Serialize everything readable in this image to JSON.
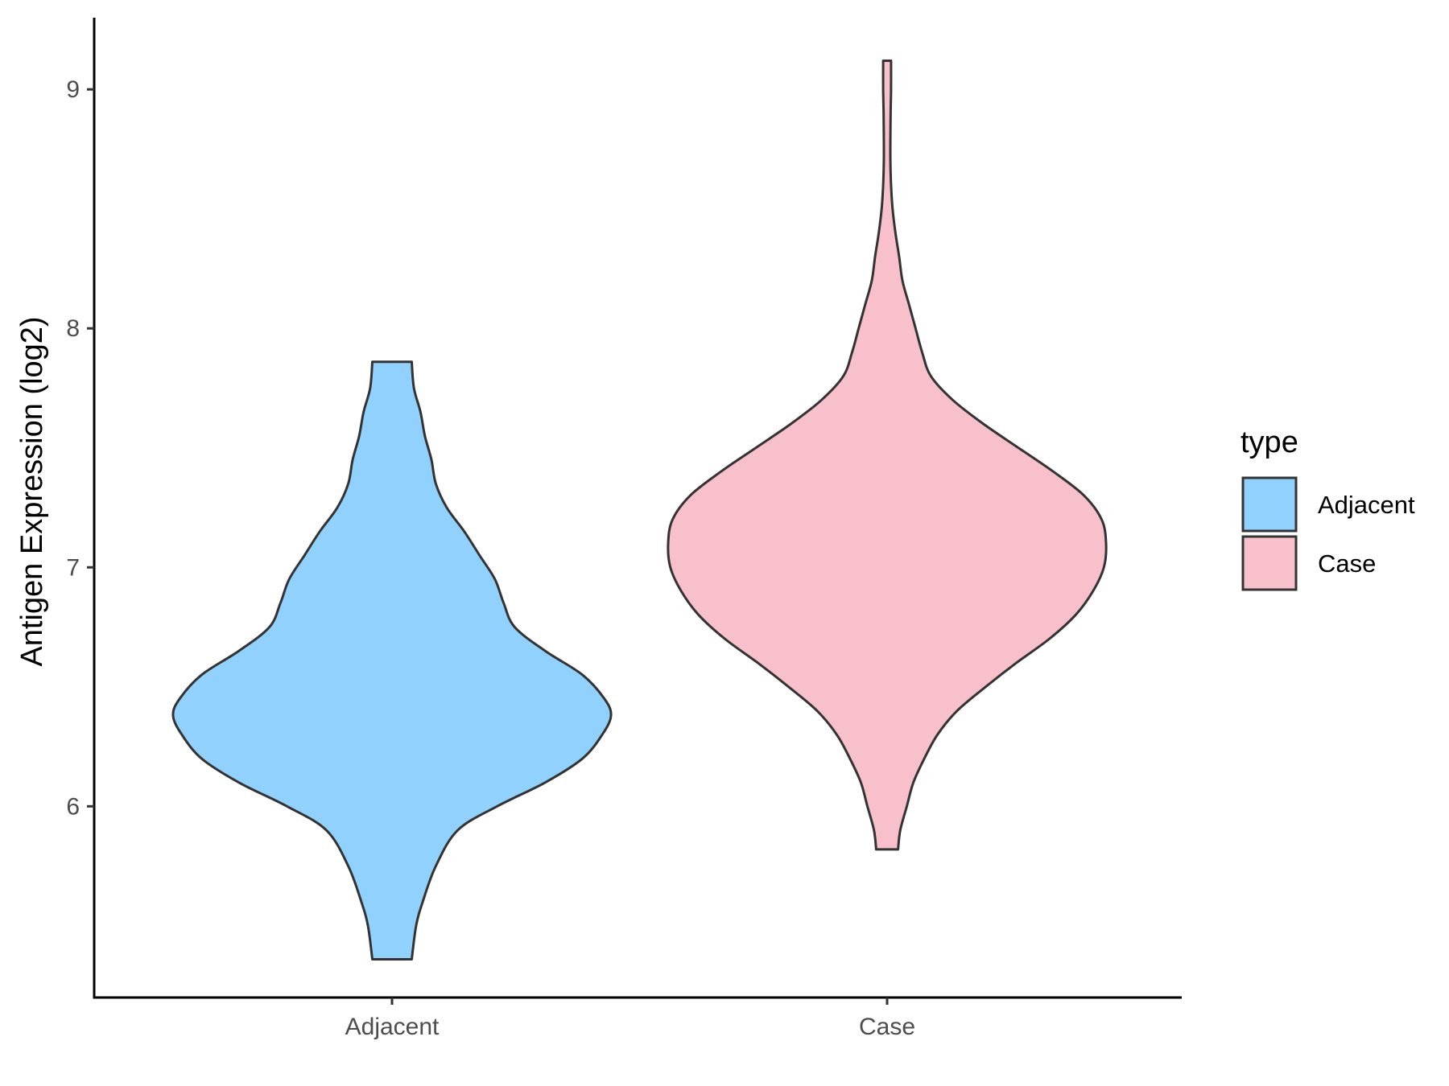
{
  "chart_data": {
    "type": "violin",
    "title": "",
    "xlabel": "",
    "ylabel": "Antigen Expression (log2)",
    "ylim": [
      5.2,
      9.3
    ],
    "yticks": [
      6,
      7,
      8,
      9
    ],
    "categories": [
      "Adjacent",
      "Case"
    ],
    "grid": false,
    "legend": {
      "title": "type",
      "placement": "right",
      "entries": [
        {
          "label": "Adjacent",
          "color": "#91D1FD"
        },
        {
          "label": "Case",
          "color": "#F7C0CB"
        }
      ]
    },
    "series": [
      {
        "name": "Adjacent",
        "color": "#91D1FD",
        "min": 5.36,
        "max": 7.86,
        "density_profile": [
          [
            5.36,
            0.09
          ],
          [
            5.5,
            0.11
          ],
          [
            5.6,
            0.14
          ],
          [
            5.75,
            0.2
          ],
          [
            5.9,
            0.3
          ],
          [
            6.0,
            0.48
          ],
          [
            6.1,
            0.7
          ],
          [
            6.2,
            0.87
          ],
          [
            6.3,
            0.96
          ],
          [
            6.38,
            1.0
          ],
          [
            6.45,
            0.97
          ],
          [
            6.55,
            0.87
          ],
          [
            6.65,
            0.7
          ],
          [
            6.75,
            0.56
          ],
          [
            6.85,
            0.51
          ],
          [
            6.95,
            0.47
          ],
          [
            7.05,
            0.4
          ],
          [
            7.15,
            0.33
          ],
          [
            7.25,
            0.25
          ],
          [
            7.35,
            0.2
          ],
          [
            7.45,
            0.18
          ],
          [
            7.55,
            0.15
          ],
          [
            7.65,
            0.13
          ],
          [
            7.75,
            0.1
          ],
          [
            7.86,
            0.09
          ]
        ]
      },
      {
        "name": "Case",
        "color": "#F7C0CB",
        "min": 5.82,
        "max": 9.12,
        "density_profile": [
          [
            5.82,
            0.05
          ],
          [
            5.9,
            0.06
          ],
          [
            6.0,
            0.09
          ],
          [
            6.1,
            0.12
          ],
          [
            6.2,
            0.17
          ],
          [
            6.3,
            0.23
          ],
          [
            6.4,
            0.32
          ],
          [
            6.5,
            0.45
          ],
          [
            6.6,
            0.59
          ],
          [
            6.7,
            0.74
          ],
          [
            6.8,
            0.86
          ],
          [
            6.9,
            0.94
          ],
          [
            7.0,
            0.99
          ],
          [
            7.1,
            1.0
          ],
          [
            7.2,
            0.98
          ],
          [
            7.3,
            0.9
          ],
          [
            7.4,
            0.76
          ],
          [
            7.5,
            0.6
          ],
          [
            7.6,
            0.44
          ],
          [
            7.7,
            0.3
          ],
          [
            7.8,
            0.2
          ],
          [
            7.9,
            0.16
          ],
          [
            8.0,
            0.13
          ],
          [
            8.1,
            0.1
          ],
          [
            8.2,
            0.07
          ],
          [
            8.3,
            0.055
          ],
          [
            8.4,
            0.038
          ],
          [
            8.5,
            0.025
          ],
          [
            8.6,
            0.018
          ],
          [
            8.7,
            0.015
          ],
          [
            8.8,
            0.015
          ],
          [
            8.9,
            0.016
          ],
          [
            9.0,
            0.018
          ],
          [
            9.12,
            0.018
          ]
        ]
      }
    ]
  }
}
